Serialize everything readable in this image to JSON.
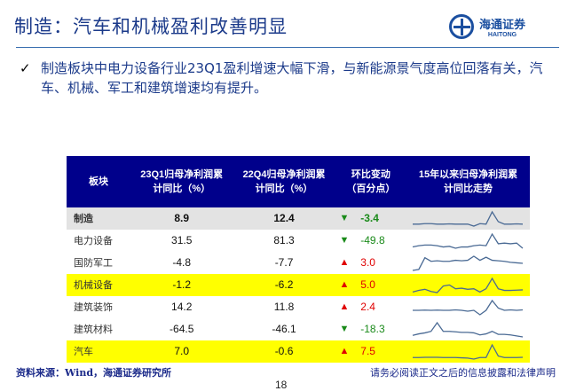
{
  "title": "制造：汽车和机械盈利改善明显",
  "logo": {
    "cn": "海通证券",
    "en": "HAITONG"
  },
  "bullet": "制造板块中电力设备行业23Q1盈利增速大幅下滑，与新能源景气度高位回落有关，汽车、机械、军工和建筑增速均有提升。",
  "table": {
    "headers": [
      "板块",
      "23Q1归母净利润累计同比（%）",
      "22Q4归母净利润累计同比（%）",
      "环比变动（百分点）",
      "15年以来归母净利润累计同比走势"
    ],
    "rows": [
      {
        "name": "制造",
        "q1": "8.9",
        "q4": "12.4",
        "dir": "down",
        "chg": "-3.4",
        "style": "grey",
        "trend": [
          0,
          0,
          0.1,
          0.1,
          0,
          0,
          0.05,
          0,
          0,
          0,
          -0.4,
          0.1,
          0,
          2.5,
          0.5,
          0,
          0,
          0.05,
          0
        ]
      },
      {
        "name": "电力设备",
        "q1": "31.5",
        "q4": "81.3",
        "dir": "down",
        "chg": "-49.8",
        "style": "",
        "trend": [
          0,
          0.2,
          0.3,
          0.3,
          0.2,
          0,
          0.1,
          -0.2,
          0,
          0,
          0.2,
          0.3,
          0.2,
          2,
          0.5,
          0.6,
          0.5,
          0.6,
          -0.2
        ]
      },
      {
        "name": "国防军工",
        "q1": "-4.8",
        "q4": "-7.7",
        "dir": "up",
        "chg": "3.0",
        "style": "",
        "trend": [
          -1,
          -0.8,
          1.5,
          0.8,
          0.9,
          0.8,
          0.8,
          1,
          0.9,
          1,
          1.8,
          1,
          1.6,
          1,
          0.9,
          0.8,
          0.6,
          0.5,
          0.4
        ]
      },
      {
        "name": "机械设备",
        "q1": "-1.2",
        "q4": "-6.2",
        "dir": "up",
        "chg": "5.0",
        "style": "yellow",
        "trend": [
          -0.3,
          0,
          0.2,
          -0.2,
          -0.4,
          0.8,
          1,
          0.3,
          0.4,
          0.2,
          0.3,
          -0.3,
          0.3,
          2.2,
          0.3,
          0,
          0,
          0.05,
          0.1
        ]
      },
      {
        "name": "建筑装饰",
        "q1": "14.2",
        "q4": "11.8",
        "dir": "up",
        "chg": "2.4",
        "style": "",
        "trend": [
          0,
          0,
          0.05,
          0,
          0.05,
          0,
          0,
          0.1,
          0,
          -0.2,
          0,
          -1,
          0,
          2.2,
          0.5,
          0,
          0.1,
          0,
          0.1
        ]
      },
      {
        "name": "建筑材料",
        "q1": "-64.5",
        "q4": "-46.1",
        "dir": "down",
        "chg": "-18.3",
        "style": "",
        "trend": [
          0,
          0.3,
          0.5,
          0.8,
          2.5,
          0.8,
          0.8,
          0.7,
          0.6,
          0.6,
          0.5,
          0.1,
          0.3,
          0.8,
          0.2,
          0.2,
          0.1,
          -0.1,
          -0.3
        ]
      },
      {
        "name": "汽车",
        "q1": "7.0",
        "q4": "-0.6",
        "dir": "up",
        "chg": "7.5",
        "style": "yellow",
        "trend": [
          0,
          0,
          0.05,
          0.05,
          0.05,
          0,
          0,
          0,
          -0.05,
          -0.1,
          -0.3,
          0,
          0,
          2.5,
          0.3,
          0,
          0,
          0,
          0.05
        ]
      }
    ]
  },
  "colors": {
    "header": "#00008b",
    "up": "#e00000",
    "down": "#1a8a1a",
    "highlight": "#ffff00",
    "sparkline": "#4a6a94"
  },
  "source": "资料来源：Wind，海通证券研究所",
  "disclaimer": "请务必阅读正文之后的信息披露和法律声明",
  "page": "18"
}
